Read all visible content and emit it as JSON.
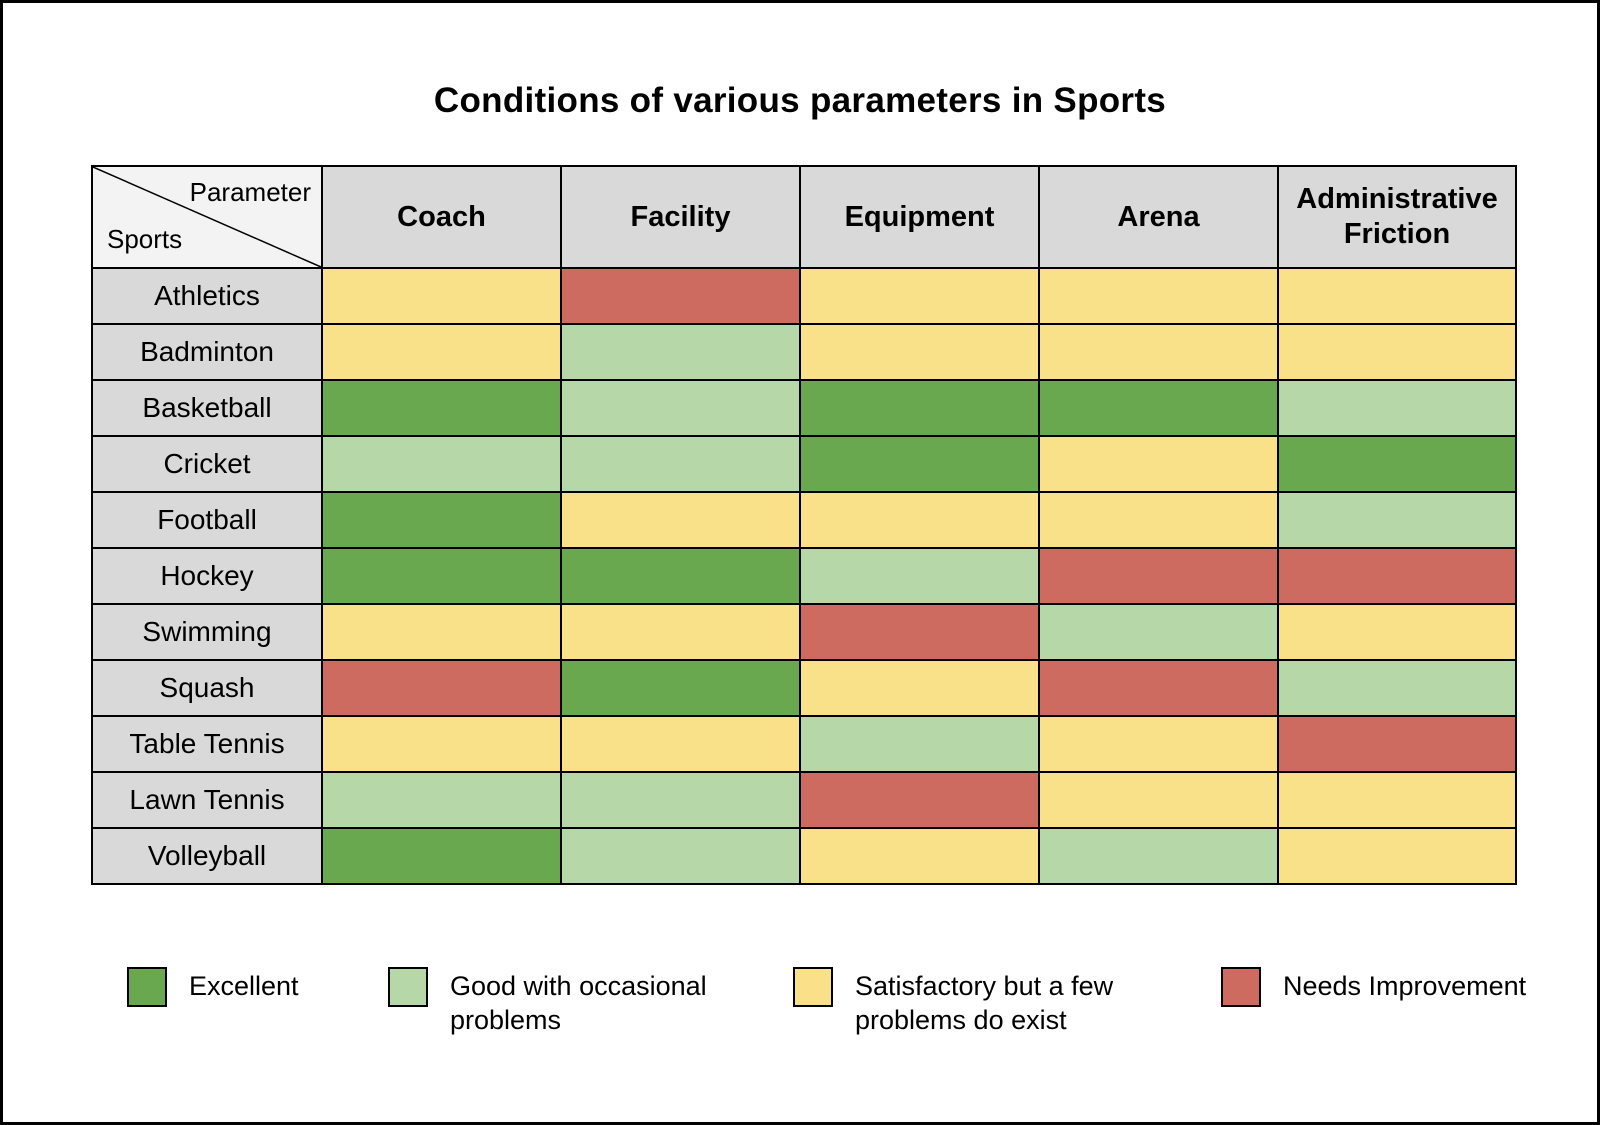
{
  "title": "Conditions of various parameters in Sports",
  "table": {
    "corner": {
      "top": "Parameter",
      "bottom": "Sports"
    },
    "columns": [
      "Coach",
      "Facility",
      "Equipment",
      "Arena",
      "Administrative Friction"
    ],
    "rows": [
      {
        "sport": "Athletics",
        "values": [
          "satisfactory",
          "needs",
          "satisfactory",
          "satisfactory",
          "satisfactory"
        ]
      },
      {
        "sport": "Badminton",
        "values": [
          "satisfactory",
          "good",
          "satisfactory",
          "satisfactory",
          "satisfactory"
        ]
      },
      {
        "sport": "Basketball",
        "values": [
          "excellent",
          "good",
          "excellent",
          "excellent",
          "good"
        ]
      },
      {
        "sport": "Cricket",
        "values": [
          "good",
          "good",
          "excellent",
          "satisfactory",
          "excellent"
        ]
      },
      {
        "sport": "Football",
        "values": [
          "excellent",
          "satisfactory",
          "satisfactory",
          "satisfactory",
          "good"
        ]
      },
      {
        "sport": "Hockey",
        "values": [
          "excellent",
          "excellent",
          "good",
          "needs",
          "needs"
        ]
      },
      {
        "sport": "Swimming",
        "values": [
          "satisfactory",
          "satisfactory",
          "needs",
          "good",
          "satisfactory"
        ]
      },
      {
        "sport": "Squash",
        "values": [
          "needs",
          "excellent",
          "satisfactory",
          "needs",
          "good"
        ]
      },
      {
        "sport": "Table Tennis",
        "values": [
          "satisfactory",
          "satisfactory",
          "good",
          "satisfactory",
          "needs"
        ]
      },
      {
        "sport": "Lawn Tennis",
        "values": [
          "good",
          "good",
          "needs",
          "satisfactory",
          "satisfactory"
        ]
      },
      {
        "sport": "Volleyball",
        "values": [
          "excellent",
          "good",
          "satisfactory",
          "good",
          "satisfactory"
        ]
      }
    ]
  },
  "legend": [
    {
      "key": "excellent",
      "label": "Excellent"
    },
    {
      "key": "good",
      "label": "Good with occasional problems"
    },
    {
      "key": "satisfactory",
      "label": "Satisfactory but a few problems do exist"
    },
    {
      "key": "needs",
      "label": "Needs Improvement"
    }
  ],
  "colors": {
    "excellent": "#6AA84F",
    "good": "#B6D7A8",
    "satisfactory": "#F9E189",
    "needs": "#CD6B61",
    "header_bg": "#D9D9D9",
    "corner_bg": "#F3F3F3",
    "border": "#000000"
  },
  "chart_data": {
    "type": "heatmap",
    "title": "Conditions of various parameters in Sports",
    "columns": [
      "Coach",
      "Facility",
      "Equipment",
      "Arena",
      "Administrative Friction"
    ],
    "rows": [
      "Athletics",
      "Badminton",
      "Basketball",
      "Cricket",
      "Football",
      "Hockey",
      "Swimming",
      "Squash",
      "Table Tennis",
      "Lawn Tennis",
      "Volleyball"
    ],
    "values": [
      [
        "satisfactory",
        "needs",
        "satisfactory",
        "satisfactory",
        "satisfactory"
      ],
      [
        "satisfactory",
        "good",
        "satisfactory",
        "satisfactory",
        "satisfactory"
      ],
      [
        "excellent",
        "good",
        "excellent",
        "excellent",
        "good"
      ],
      [
        "good",
        "good",
        "excellent",
        "satisfactory",
        "excellent"
      ],
      [
        "excellent",
        "satisfactory",
        "satisfactory",
        "satisfactory",
        "good"
      ],
      [
        "excellent",
        "excellent",
        "good",
        "needs",
        "needs"
      ],
      [
        "satisfactory",
        "satisfactory",
        "needs",
        "good",
        "satisfactory"
      ],
      [
        "needs",
        "excellent",
        "satisfactory",
        "needs",
        "good"
      ],
      [
        "satisfactory",
        "satisfactory",
        "good",
        "satisfactory",
        "needs"
      ],
      [
        "good",
        "good",
        "needs",
        "satisfactory",
        "satisfactory"
      ],
      [
        "excellent",
        "good",
        "satisfactory",
        "good",
        "satisfactory"
      ]
    ],
    "categories": {
      "excellent": "Excellent",
      "good": "Good with occasional problems",
      "satisfactory": "Satisfactory but a few problems do exist",
      "needs": "Needs Improvement"
    },
    "category_colors": {
      "excellent": "#6AA84F",
      "good": "#B6D7A8",
      "satisfactory": "#F9E189",
      "needs": "#CD6B61"
    },
    "legend_position": "bottom"
  }
}
